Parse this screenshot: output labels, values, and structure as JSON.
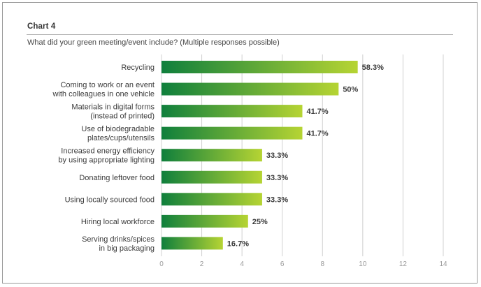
{
  "header": {
    "chart_number": "Chart 4",
    "question": "What did your green meeting/event include? (Multiple responses possible)"
  },
  "colors": {
    "bar_gradient_start": "#0f7f3c",
    "bar_gradient_end": "#b6d433",
    "grid": "#d0d0d0",
    "frame": "#9a9a9a"
  },
  "chart_data": {
    "type": "bar",
    "orientation": "horizontal",
    "title": "What did your green meeting/event include? (Multiple responses possible)",
    "categories": [
      [
        "Recycling"
      ],
      [
        "Coming to work or an event",
        "with colleagues in one vehicle"
      ],
      [
        "Materials in digital forms",
        "(instead of printed)"
      ],
      [
        "Use of biodegradable",
        "plates/cups/utensils"
      ],
      [
        "Increased energy efficiency",
        "by using appropriate lighting"
      ],
      [
        "Donating leftover food"
      ],
      [
        "Using locally sourced food"
      ],
      [
        "Hiring local workforce"
      ],
      [
        "Serving drinks/spices",
        "in big packaging"
      ]
    ],
    "values": [
      9.75,
      8.8,
      7.0,
      7.0,
      5.0,
      5.0,
      5.0,
      4.3,
      3.05
    ],
    "value_labels": [
      "58.3%",
      "50%",
      "41.7%",
      "41.7%",
      "33.3%",
      "33.3%",
      "33.3%",
      "25%",
      "16.7%"
    ],
    "xlim": [
      0,
      14
    ],
    "xticks": [
      0,
      2,
      4,
      6,
      8,
      10,
      12,
      14
    ],
    "grid": "vertical",
    "legend": "none"
  }
}
